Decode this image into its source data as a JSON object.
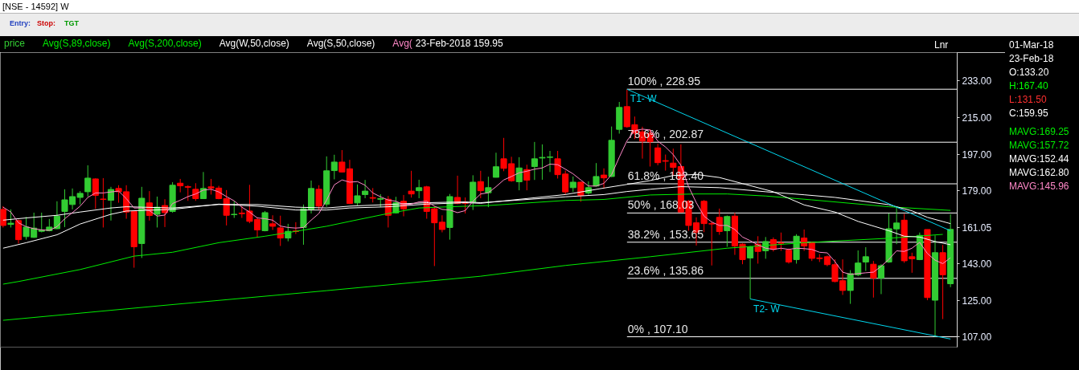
{
  "chart_data": {
    "type": "candlestick",
    "title": "[NSE - 14592] W",
    "categories": [
      null,
      null,
      null,
      null,
      null,
      null,
      null,
      null,
      null,
      null,
      null,
      null,
      null,
      null,
      null,
      null,
      null,
      null,
      null,
      null,
      null,
      null,
      null,
      null,
      null,
      null,
      null,
      null,
      null,
      null,
      null,
      null,
      null,
      null,
      null,
      null,
      null,
      null,
      null,
      null,
      null,
      null,
      null,
      null,
      null,
      null,
      null,
      null,
      null,
      null,
      null,
      null,
      null,
      null,
      null,
      null,
      null,
      null,
      null,
      null,
      null,
      null,
      null,
      null,
      null,
      null,
      null,
      null,
      null,
      null,
      null,
      null,
      null,
      null,
      null,
      null,
      null,
      null,
      null,
      null,
      null,
      null,
      null,
      null,
      null,
      null,
      null,
      null,
      null,
      null,
      null,
      null,
      null,
      null,
      null,
      null,
      null,
      null,
      null,
      null,
      null,
      null,
      null,
      null,
      null,
      null,
      null,
      null,
      null,
      null,
      null,
      null,
      null,
      null,
      null,
      null,
      null,
      null,
      null,
      null,
      null,
      null,
      null,
      null
    ],
    "series": [
      {
        "name": "price",
        "color": "#33cc33",
        "ohlc": [
          [
            169.8,
            171.4,
            160.9,
            161.9
          ],
          [
            162.4,
            169.8,
            160.9,
            163.0
          ],
          [
            164.3,
            164.8,
            153.0,
            154.9
          ],
          [
            156.4,
            166.1,
            154.9,
            161.1
          ],
          [
            156.0,
            168.2,
            155.8,
            160.6
          ],
          [
            159.0,
            168.2,
            158.5,
            159.7
          ],
          [
            159.3,
            165.1,
            159.0,
            161.1
          ],
          [
            160.3,
            173.8,
            160.1,
            166.5
          ],
          [
            168.8,
            179.7,
            161.1,
            174.5
          ],
          [
            172.2,
            180.1,
            169.8,
            176.1
          ],
          [
            175.7,
            178.8,
            172.2,
            177.7
          ],
          [
            178.5,
            191.5,
            176.1,
            185.2
          ],
          [
            184.8,
            185.1,
            170.1,
            176.7
          ],
          [
            174.9,
            185.2,
            160.9,
            174.7
          ],
          [
            174.3,
            180.9,
            164.3,
            179.6
          ],
          [
            180.1,
            181.7,
            173.1,
            178.5
          ],
          [
            178.5,
            181.7,
            165.2,
            168.5
          ],
          [
            168.8,
            169.0,
            141.1,
            151.4
          ],
          [
            153.0,
            180.9,
            145.9,
            175.3
          ],
          [
            173.0,
            178.8,
            164.3,
            166.8
          ],
          [
            167.4,
            176.1,
            160.9,
            170.9
          ],
          [
            171.7,
            174.8,
            161.1,
            168.2
          ],
          [
            168.8,
            183.2,
            168.2,
            181.7
          ],
          [
            182.7,
            184.8,
            178.2,
            181.4
          ],
          [
            181.0,
            181.7,
            174.0,
            180.7
          ],
          [
            179.7,
            182.7,
            174.0,
            175.1
          ],
          [
            175.1,
            188.2,
            175.1,
            180.1
          ],
          [
            180.9,
            184.8,
            177.1,
            180.3
          ],
          [
            180.3,
            181.4,
            174.8,
            175.1
          ],
          [
            175.1,
            179.3,
            161.9,
            166.9
          ],
          [
            167.2,
            173.8,
            165.6,
            167.4
          ],
          [
            168.0,
            171.4,
            165.6,
            167.7
          ],
          [
            169.0,
            181.9,
            163.0,
            163.9
          ],
          [
            164.8,
            165.9,
            155.9,
            159.7
          ],
          [
            159.3,
            169.0,
            159.0,
            168.2
          ],
          [
            162.7,
            166.9,
            159.7,
            161.5
          ],
          [
            160.7,
            166.7,
            151.8,
            155.7
          ],
          [
            155.7,
            162.7,
            154.1,
            159.0
          ],
          [
            159.2,
            163.5,
            157.7,
            158.9
          ],
          [
            160.9,
            172.2,
            152.4,
            170.1
          ],
          [
            169.8,
            184.0,
            167.8,
            180.1
          ],
          [
            179.7,
            181.7,
            169.8,
            171.4
          ],
          [
            172.4,
            195.9,
            171.1,
            188.8
          ],
          [
            188.9,
            196.7,
            184.6,
            193.1
          ],
          [
            193.1,
            199.0,
            188.0,
            188.2
          ],
          [
            189.8,
            194.2,
            172.4,
            172.7
          ],
          [
            173.0,
            182.1,
            171.8,
            176.5
          ],
          [
            177.1,
            184.3,
            175.3,
            178.8
          ],
          [
            175.6,
            180.3,
            173.2,
            175.3
          ],
          [
            174.8,
            177.3,
            170.9,
            175.1
          ],
          [
            174.8,
            176.4,
            160.9,
            166.9
          ],
          [
            168.1,
            176.0,
            167.8,
            173.1
          ],
          [
            173.8,
            176.9,
            166.4,
            170.1
          ],
          [
            178.8,
            188.8,
            175.6,
            177.4
          ],
          [
            179.0,
            184.4,
            175.3,
            180.5
          ],
          [
            180.9,
            181.4,
            165.2,
            168.8
          ],
          [
            170.1,
            171.4,
            141.9,
            163.2
          ],
          [
            163.5,
            166.9,
            158.5,
            159.9
          ],
          [
            160.9,
            177.4,
            154.9,
            176.1
          ],
          [
            175.7,
            186.4,
            172.4,
            172.7
          ],
          [
            173.1,
            175.7,
            167.8,
            172.8
          ],
          [
            173.5,
            186.6,
            169.5,
            183.2
          ],
          [
            183.5,
            188.8,
            175.3,
            179.0
          ],
          [
            178.0,
            185.9,
            170.9,
            180.5
          ],
          [
            185.6,
            197.7,
            185.5,
            190.8
          ],
          [
            194.7,
            205.0,
            188.6,
            190.0
          ],
          [
            192.3,
            195.7,
            183.4,
            183.9
          ],
          [
            183.4,
            195.5,
            179.2,
            190.2
          ],
          [
            189.4,
            191.8,
            179.2,
            184.2
          ],
          [
            190.9,
            203.0,
            184.3,
            194.7
          ],
          [
            195.1,
            201.8,
            184.4,
            195.4
          ],
          [
            195.4,
            198.6,
            188.2,
            195.6
          ],
          [
            194.7,
            198.6,
            185.0,
            186.9
          ],
          [
            187.2,
            188.9,
            177.1,
            178.4
          ],
          [
            180.5,
            186.0,
            178.4,
            183.2
          ],
          [
            183.2,
            183.4,
            173.6,
            176.7
          ],
          [
            177.9,
            183.6,
            177.1,
            180.5
          ],
          [
            181.3,
            192.6,
            181.0,
            186.0
          ],
          [
            186.7,
            190.0,
            180.0,
            185.3
          ],
          [
            186.0,
            210.6,
            185.7,
            203.8
          ],
          [
            209.2,
            222.7,
            207.1,
            220.0
          ],
          [
            220.4,
            228.95,
            210.0,
            210.5
          ],
          [
            211.5,
            215.5,
            204.4,
            207.3
          ],
          [
            208.0,
            210.5,
            194.8,
            203.4
          ],
          [
            207.3,
            209.3,
            190.9,
            203.1
          ],
          [
            200.1,
            202.1,
            191.5,
            192.8
          ],
          [
            193.8,
            196.8,
            188.9,
            193.5
          ],
          [
            192.6,
            199.7,
            186.3,
            190.5
          ],
          [
            190.9,
            201.8,
            168.5,
            168.5
          ],
          [
            173.8,
            174.4,
            159.3,
            161.9
          ],
          [
            163.2,
            165.9,
            152.0,
            158.6
          ],
          [
            173.8,
            174.4,
            158.6,
            162.8
          ],
          [
            162.8,
            163.9,
            142.2,
            162.6
          ],
          [
            165.9,
            170.2,
            157.3,
            158.9
          ],
          [
            159.3,
            166.8,
            151.4,
            166.3
          ],
          [
            166.5,
            168.1,
            147.4,
            151.8
          ],
          [
            152.7,
            153.1,
            142.8,
            145.1
          ],
          [
            145.9,
            151.8,
            125.7,
            151.4
          ],
          [
            152.7,
            156.6,
            143.1,
            149.1
          ],
          [
            149.4,
            156.2,
            145.5,
            154.0
          ],
          [
            154.9,
            156.0,
            149.1,
            150.1
          ],
          [
            153.4,
            158.4,
            149.4,
            153.1
          ],
          [
            149.7,
            150.5,
            143.1,
            143.9
          ],
          [
            145.1,
            157.6,
            143.1,
            156.6
          ],
          [
            155.7,
            159.9,
            149.4,
            151.8
          ],
          [
            153.4,
            154.0,
            144.4,
            145.7
          ],
          [
            145.9,
            147.8,
            143.9,
            145.6
          ],
          [
            146.5,
            147.1,
            141.8,
            142.6
          ],
          [
            142.6,
            145.2,
            133.9,
            134.3
          ],
          [
            134.7,
            145.2,
            127.7,
            129.9
          ],
          [
            129.9,
            139.9,
            123.3,
            138.2
          ],
          [
            137.6,
            149.6,
            136.9,
            143.4
          ],
          [
            143.9,
            151.2,
            139.5,
            146.5
          ],
          [
            142.8,
            144.4,
            126.4,
            136.0
          ],
          [
            136.0,
            142.8,
            128.1,
            142.1
          ],
          [
            143.9,
            167.8,
            143.5,
            160.3
          ],
          [
            160.2,
            170.7,
            152.7,
            163.1
          ],
          [
            164.5,
            167.6,
            143.5,
            144.5
          ],
          [
            146.5,
            148.5,
            138.6,
            145.5
          ],
          [
            145.1,
            158.4,
            144.8,
            157.0
          ],
          [
            159.9,
            159.9,
            125.1,
            126.4
          ],
          [
            125.1,
            157.0,
            107.1,
            148.5
          ],
          [
            148.5,
            152.3,
            115.8,
            137.6
          ],
          [
            133.2,
            167.4,
            131.5,
            159.95
          ]
        ],
        "colors": [
          "#ff0000",
          "#33cc33",
          "#ff0000",
          "#33cc33",
          "#33cc33",
          "#33cc33",
          "#33cc33",
          "#33cc33",
          "#33cc33",
          "#33cc33",
          "#33cc33",
          "#33cc33",
          "#ff0000",
          "#ff0000",
          "#33cc33",
          "#ff0000",
          "#ff0000",
          "#ff0000",
          "#33cc33",
          "#ff0000",
          "#33cc33",
          "#ff0000",
          "#33cc33",
          "#ff0000",
          "#ff0000",
          "#ff0000",
          "#33cc33",
          "#ff0000",
          "#ff0000",
          "#ff0000",
          "#33cc33",
          "#ff0000",
          "#ff0000",
          "#ff0000",
          "#33cc33",
          "#ff0000",
          "#ff0000",
          "#33cc33",
          "#ff0000",
          "#33cc33",
          "#33cc33",
          "#ff0000",
          "#33cc33",
          "#33cc33",
          "#ff0000",
          "#ff0000",
          "#33cc33",
          "#33cc33",
          "#ff0000",
          "#33cc33",
          "#ff0000",
          "#33cc33",
          "#ff0000",
          "#ff0000",
          "#33cc33",
          "#ff0000",
          "#ff0000",
          "#ff0000",
          "#33cc33",
          "#ff0000",
          "#ff0000",
          "#33cc33",
          "#ff0000",
          "#33cc33",
          "#33cc33",
          "#ff0000",
          "#ff0000",
          "#33cc33",
          "#ff0000",
          "#33cc33",
          "#33cc33",
          "#33cc33",
          "#ff0000",
          "#ff0000",
          "#33cc33",
          "#ff0000",
          "#33cc33",
          "#33cc33",
          "#ff0000",
          "#33cc33",
          "#33cc33",
          "#ff0000",
          "#ff0000",
          "#ff0000",
          "#ff0000",
          "#ff0000",
          "#ff0000",
          "#ff0000",
          "#ff0000",
          "#ff0000",
          "#ff0000",
          "#ff0000",
          "#ff0000",
          "#ff0000",
          "#33cc33",
          "#ff0000",
          "#ff0000",
          "#33cc33",
          "#ff0000",
          "#33cc33",
          "#ff0000",
          "#ff0000",
          "#ff0000",
          "#33cc33",
          "#ff0000",
          "#ff0000",
          "#ff0000",
          "#ff0000",
          "#ff0000",
          "#ff0000",
          "#33cc33",
          "#33cc33",
          "#33cc33",
          "#ff0000",
          "#33cc33",
          "#33cc33",
          "#33cc33",
          "#ff0000",
          "#ff0000",
          "#33cc33",
          "#ff0000",
          "#33cc33",
          "#ff0000",
          "#33cc33"
        ]
      },
      {
        "type": "line",
        "name": "Avg(S,89,close)",
        "color": "#00ee00",
        "values": [
          133.0,
          null,
          134.3,
          null,
          null,
          null,
          null,
          null,
          null,
          null,
          140.2,
          null,
          null,
          null,
          null,
          null,
          null,
          146.8,
          null,
          null,
          null,
          null,
          148.7,
          null,
          null,
          null,
          null,
          null,
          153.4,
          null,
          null,
          null,
          null,
          null,
          156.6,
          null,
          null,
          null,
          159.0,
          null,
          null,
          null,
          161.5,
          null,
          null,
          163.9,
          null,
          null,
          null,
          null,
          167.8,
          null,
          null,
          null,
          170.5,
          null,
          null,
          null,
          171.1,
          null,
          null,
          null,
          null,
          171.7,
          null,
          null,
          null,
          null,
          null,
          null,
          null,
          null,
          null,
          174.2,
          null,
          null,
          null,
          null,
          174.7,
          null,
          null,
          null,
          null,
          null,
          176.9,
          null,
          null,
          null,
          null,
          null,
          177.4,
          null,
          null,
          null,
          177.4,
          null,
          null,
          null,
          null,
          176.4,
          null,
          null,
          null,
          null,
          null,
          174.5,
          null,
          null,
          null,
          null,
          null,
          null,
          null,
          null,
          null,
          171.1,
          null,
          null,
          null,
          null,
          null,
          null,
          null,
          169.3
        ]
      },
      {
        "type": "line",
        "name": "Avg(S,200,close)",
        "color": "#00ee00",
        "values": [
          115.2,
          null,
          null,
          null,
          null,
          null,
          null,
          null,
          null,
          null,
          null,
          null,
          null,
          null,
          null,
          null,
          null,
          null,
          null,
          null,
          null,
          122.6,
          null,
          null,
          null,
          null,
          null,
          null,
          null,
          null,
          null,
          null,
          null,
          null,
          null,
          null,
          null,
          null,
          null,
          null,
          null,
          null,
          129.8,
          null,
          null,
          null,
          null,
          null,
          null,
          null,
          null,
          null,
          null,
          null,
          null,
          null,
          null,
          null,
          null,
          null,
          null,
          null,
          136.9,
          null,
          null,
          null,
          null,
          null,
          null,
          null,
          null,
          null,
          null,
          142.2,
          null,
          null,
          null,
          null,
          null,
          null,
          null,
          null,
          null,
          null,
          146.5,
          null,
          null,
          null,
          null,
          null,
          null,
          null,
          null,
          null,
          150.7,
          null,
          null,
          null,
          null,
          null,
          null,
          null,
          null,
          null,
          153.4,
          null,
          null,
          null,
          null,
          null,
          null,
          null,
          null,
          null,
          null,
          155.6,
          null,
          null,
          null,
          null,
          null,
          null,
          157.5,
          null
        ]
      },
      {
        "type": "line",
        "name": "Avg(W,50,close)",
        "color": "#ffffff",
        "values": [
          150.7,
          null,
          null,
          153.4,
          null,
          null,
          null,
          157.3,
          null,
          null,
          162.6,
          null,
          null,
          null,
          167.4,
          null,
          169.0,
          null,
          null,
          null,
          null,
          null,
          169.8,
          null,
          null,
          null,
          null,
          null,
          172.4,
          null,
          null,
          null,
          null,
          171.4,
          null,
          null,
          null,
          null,
          169.5,
          null,
          null,
          null,
          169.5,
          null,
          null,
          170.5,
          null,
          null,
          null,
          null,
          171.1,
          null,
          null,
          null,
          null,
          172.4,
          null,
          null,
          null,
          null,
          173.1,
          null,
          172.8,
          null,
          null,
          null,
          null,
          null,
          null,
          null,
          null,
          null,
          null,
          177.1,
          null,
          null,
          null,
          null,
          180.3,
          null,
          null,
          182.1,
          null,
          null,
          184.0,
          null,
          null,
          186.5,
          null,
          null,
          187.0,
          null,
          null,
          185.5,
          null,
          null,
          182.5,
          null,
          null,
          null,
          178.5,
          null,
          null,
          null,
          172.0,
          null,
          null,
          null,
          168.5,
          null,
          null,
          163.9,
          null,
          null,
          null,
          159.3,
          null,
          156.6,
          null,
          156.2,
          null,
          154.0,
          null,
          152.4
        ]
      },
      {
        "type": "line",
        "name": "Avg(S,50,close)",
        "color": "#ffffff",
        "values": [
          164.5,
          null,
          null,
          165.6,
          null,
          null,
          null,
          166.9,
          null,
          null,
          168.5,
          null,
          null,
          null,
          170.5,
          null,
          171.1,
          null,
          null,
          null,
          null,
          null,
          170.5,
          null,
          null,
          null,
          null,
          null,
          172.2,
          null,
          null,
          null,
          null,
          172.2,
          null,
          null,
          null,
          null,
          170.9,
          null,
          null,
          null,
          170.5,
          null,
          null,
          171.4,
          null,
          null,
          null,
          null,
          172.2,
          null,
          null,
          null,
          null,
          173.1,
          null,
          null,
          null,
          null,
          173.5,
          null,
          173.1,
          null,
          null,
          null,
          null,
          null,
          null,
          null,
          null,
          null,
          null,
          176.0,
          null,
          null,
          null,
          null,
          177.1,
          null,
          null,
          178.6,
          null,
          null,
          179.7,
          null,
          null,
          null,
          181.0,
          null,
          null,
          null,
          null,
          180.5,
          null,
          null,
          null,
          null,
          null,
          178.5,
          null,
          null,
          null,
          null,
          177.0,
          null,
          null,
          null,
          175.7,
          null,
          null,
          174.2,
          null,
          null,
          null,
          172.1,
          null,
          null,
          169.1,
          null,
          165.9,
          null,
          null,
          162.8
        ]
      },
      {
        "type": "line",
        "name": "Avg(",
        "color": "#ff88c8",
        "values": [
          170.9,
          168.5,
          163.2,
          161.3,
          160.3,
          159.7,
          159.5,
          161.3,
          165.2,
          168.2,
          171.4,
          175.7,
          177.9,
          177.9,
          178.4,
          178.8,
          175.1,
          170.5,
          170.5,
          169.2,
          166.5,
          167.0,
          172.7,
          174.3,
          176.1,
          177.4,
          179.3,
          179.7,
          178.4,
          176.1,
          174.0,
          170.9,
          168.5,
          165.6,
          165.2,
          164.5,
          161.6,
          160.9,
          160.6,
          160.9,
          164.5,
          167.8,
          174.4,
          181.9,
          184.3,
          183.2,
          183.5,
          181.7,
          177.9,
          176.0,
          174.4,
          173.8,
          172.2,
          172.4,
          173.5,
          173.8,
          171.4,
          169.8,
          169.5,
          168.2,
          169.2,
          173.8,
          177.4,
          178.0,
          181.0,
          184.3,
          186.0,
          187.8,
          188.6,
          189.6,
          190.2,
          192.1,
          191.8,
          189.6,
          187.3,
          184.3,
          181.3,
          181.3,
          182.6,
          186.9,
          195.5,
          203.6,
          208.6,
          209.3,
          208.9,
          203.4,
          200.5,
          196.8,
          191.5,
          181.0,
          173.1,
          166.5,
          163.6,
          161.9,
          161.9,
          159.9,
          156.2,
          154.4,
          152.3,
          150.7,
          150.1,
          150.7,
          150.1,
          150.7,
          150.5,
          150.1,
          148.7,
          148.4,
          144.1,
          138.9,
          137.8,
          138.2,
          138.6,
          138.9,
          141.8,
          145.2,
          149.4,
          149.1,
          150.7,
          153.6,
          148.1,
          144.8,
          143.1,
          146.0
        ]
      },
      {
        "type": "line",
        "name": "T1- W",
        "color": "#00d8f0",
        "values": [
          null,
          null,
          null,
          null,
          null,
          null,
          null,
          null,
          null,
          null,
          null,
          null,
          null,
          null,
          null,
          null,
          null,
          null,
          null,
          null,
          null,
          null,
          null,
          null,
          null,
          null,
          null,
          null,
          null,
          null,
          null,
          null,
          null,
          null,
          null,
          null,
          null,
          null,
          null,
          null,
          null,
          null,
          null,
          null,
          null,
          null,
          null,
          null,
          null,
          null,
          null,
          null,
          null,
          null,
          null,
          null,
          null,
          null,
          null,
          null,
          null,
          null,
          null,
          null,
          null,
          null,
          null,
          null,
          null,
          null,
          null,
          null,
          null,
          null,
          null,
          null,
          null,
          null,
          null,
          null,
          null,
          228.95,
          null,
          null,
          null,
          null,
          null,
          null,
          null,
          null,
          null,
          null,
          null,
          null,
          null,
          null,
          null,
          null,
          null,
          null,
          null,
          null,
          null,
          null,
          null,
          null,
          null,
          null,
          null,
          null,
          null,
          null,
          null,
          null,
          null,
          null,
          null,
          null,
          null,
          null,
          null,
          null,
          null,
          159.3
        ]
      },
      {
        "type": "line",
        "name": "T2- W",
        "color": "#00d8f0",
        "values": [
          null,
          null,
          null,
          null,
          null,
          null,
          null,
          null,
          null,
          null,
          null,
          null,
          null,
          null,
          null,
          null,
          null,
          null,
          null,
          null,
          null,
          null,
          null,
          null,
          null,
          null,
          null,
          null,
          null,
          null,
          null,
          null,
          null,
          null,
          null,
          null,
          null,
          null,
          null,
          null,
          null,
          null,
          null,
          null,
          null,
          null,
          null,
          null,
          null,
          null,
          null,
          null,
          null,
          null,
          null,
          null,
          null,
          null,
          null,
          null,
          null,
          null,
          null,
          null,
          null,
          null,
          null,
          null,
          null,
          null,
          null,
          null,
          null,
          null,
          null,
          null,
          null,
          null,
          null,
          null,
          null,
          null,
          null,
          null,
          null,
          null,
          null,
          null,
          null,
          null,
          null,
          null,
          null,
          null,
          null,
          null,
          null,
          125.7,
          null,
          null,
          null,
          null,
          null,
          null,
          null,
          null,
          null,
          null,
          null,
          null,
          null,
          null,
          null,
          null,
          null,
          null,
          null,
          null,
          null,
          null,
          null,
          null,
          null,
          106.0
        ]
      }
    ],
    "ylim": [
      102,
      247
    ],
    "yticks": [
      {
        "value": 233,
        "label": "233.00"
      },
      {
        "value": 215,
        "label": "215.00"
      },
      {
        "value": 197,
        "label": "197.00"
      },
      {
        "value": 179,
        "label": "179.00"
      },
      {
        "value": 161.05,
        "label": "161.05"
      },
      {
        "value": 143,
        "label": "143.00"
      },
      {
        "value": 125,
        "label": "125.00"
      },
      {
        "value": 107,
        "label": "107.00"
      }
    ],
    "tick_labels": "y",
    "legend": "top left",
    "ref_lines": [
      {
        "axis": "y",
        "value": 228.95,
        "label": "100%  , 228.95",
        "color": "#ffffff"
      },
      {
        "axis": "y",
        "value": 202.87,
        "label": "78.6%  , 202.87",
        "color": "#ffffff"
      },
      {
        "axis": "y",
        "value": 182.4,
        "label": "61.8%  , 182.40",
        "color": "#ffffff"
      },
      {
        "axis": "y",
        "value": 168.03,
        "label": "50%  , 168.03",
        "color": "#ffffff"
      },
      {
        "axis": "y",
        "value": 153.65,
        "label": "38.2%  , 153.65",
        "color": "#ffffff"
      },
      {
        "axis": "y",
        "value": 135.86,
        "label": "23.6%  , 135.86",
        "color": "#ffffff"
      },
      {
        "axis": "y",
        "value": 107.1,
        "label": "0%  , 107.10",
        "color": "#ffffff"
      }
    ],
    "annotations": [
      "Entry:",
      "Stop:",
      "TGT",
      "23-Feb-2018 159.95",
      "Lnr",
      "01-Mar-18",
      "23-Feb-18",
      "O:133.20",
      "H:167.40",
      "L:131.50",
      "C:159.95",
      "MAVG:169.25",
      "MAVG:157.72",
      "MAVG:152.44",
      "MAVG:162.80",
      "MAVG:145.96"
    ]
  }
}
